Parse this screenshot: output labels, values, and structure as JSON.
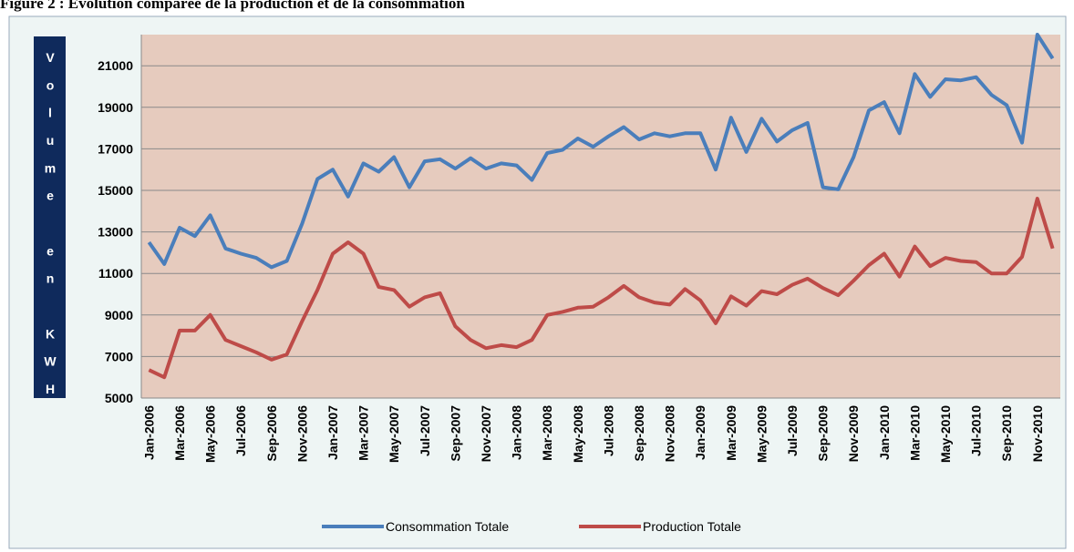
{
  "chart_data": {
    "type": "line",
    "title": "Figure 2 : Evolution comparée de la production et de la consommation",
    "y_label": "Volume en KWH",
    "categories": [
      "Jan-2006",
      null,
      "Mar-2006",
      null,
      "May-2006",
      null,
      "Jul-2006",
      null,
      "Sep-2006",
      null,
      "Nov-2006",
      null,
      "Jan-2007",
      null,
      "Mar-2007",
      null,
      "May-2007",
      null,
      "Jul-2007",
      null,
      "Sep-2007",
      null,
      "Nov-2007",
      null,
      "Jan-2008",
      null,
      "Mar-2008",
      null,
      "May-2008",
      null,
      "Jul-2008",
      null,
      "Sep-2008",
      null,
      "Nov-2008",
      null,
      "Jan-2009",
      null,
      "Mar-2009",
      null,
      "May-2009",
      null,
      "Jul-2009",
      null,
      "Sep-2009",
      null,
      "Nov-2009",
      null,
      "Jan-2010",
      null,
      "Mar-2010",
      null,
      "May-2010",
      null,
      "Jul-2010",
      null,
      "Sep-2010",
      null,
      "Nov-2010",
      null
    ],
    "series": [
      {
        "name": "Consommation Totale",
        "color": "#4a7ebb",
        "values": [
          12500,
          11450,
          13200,
          12800,
          13800,
          12200,
          11950,
          11750,
          11300,
          11600,
          13400,
          15550,
          16000,
          14700,
          16300,
          15900,
          16600,
          15150,
          16400,
          16500,
          16050,
          16550,
          16050,
          16300,
          16200,
          15500,
          16800,
          16950,
          17500,
          17100,
          17600,
          18050,
          17450,
          17750,
          17600,
          17750,
          17750,
          16000,
          18500,
          16850,
          18450,
          17350,
          17900,
          18250,
          15150,
          15050,
          16600,
          18850,
          19250,
          17750,
          20600,
          19500,
          20350,
          20300,
          20450,
          19600,
          19100,
          17300,
          22500,
          21350
        ]
      },
      {
        "name": "Production Totale",
        "color": "#be4b48",
        "values": [
          6350,
          6000,
          8250,
          8250,
          9000,
          7800,
          7500,
          7200,
          6850,
          7100,
          8700,
          10200,
          11950,
          12500,
          11950,
          10350,
          10200,
          9400,
          9850,
          10050,
          8450,
          7800,
          7400,
          7550,
          7450,
          7800,
          9000,
          9150,
          9350,
          9400,
          9850,
          10400,
          9850,
          9600,
          9500,
          10250,
          9700,
          8600,
          9900,
          9450,
          10150,
          10000,
          10450,
          10750,
          10300,
          9950,
          10650,
          11400,
          11950,
          10850,
          12300,
          11350,
          11750,
          11600,
          11550,
          11000,
          11000,
          11800,
          14600,
          12200
        ]
      }
    ],
    "ylim": [
      5000,
      22500
    ],
    "yticks": [
      5000,
      7000,
      9000,
      11000,
      13000,
      15000,
      17000,
      19000,
      21000
    ],
    "grid": true,
    "legend": "bottom"
  }
}
